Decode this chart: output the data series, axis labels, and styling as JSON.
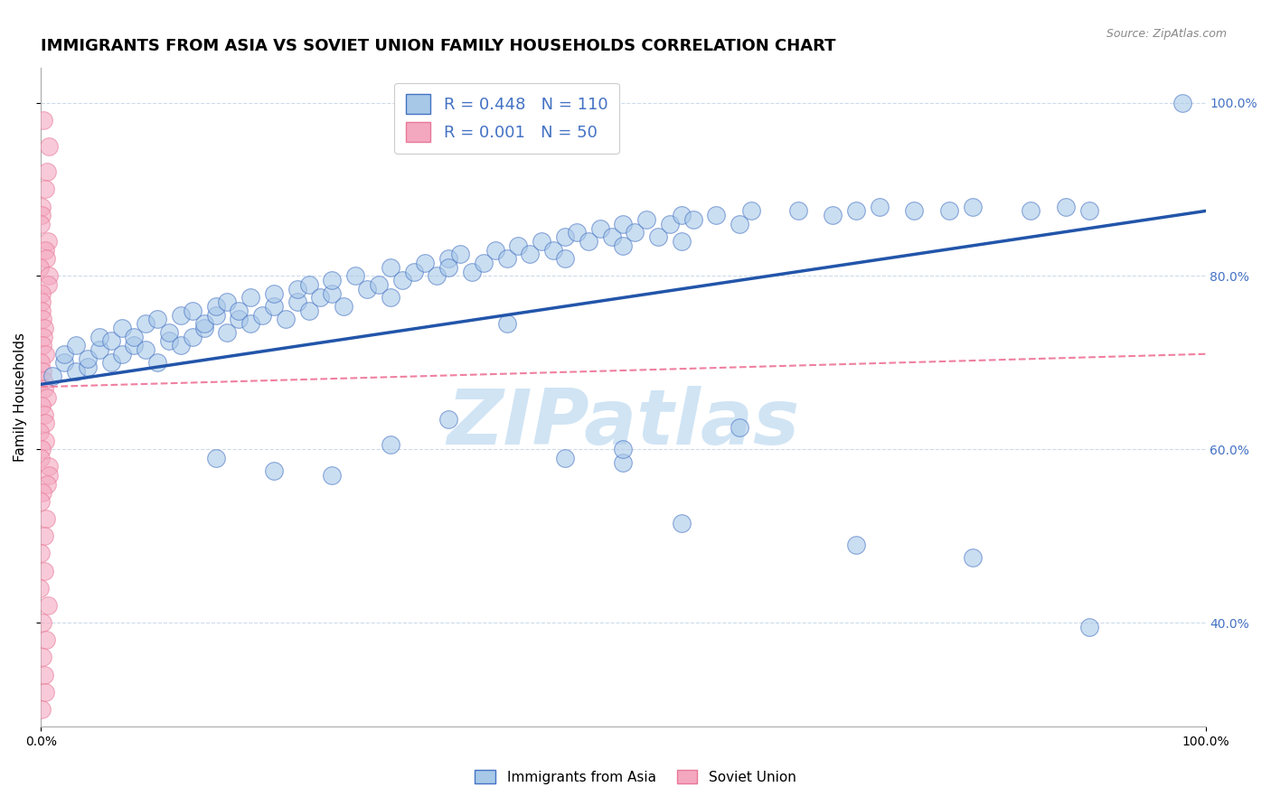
{
  "title": "IMMIGRANTS FROM ASIA VS SOVIET UNION FAMILY HOUSEHOLDS CORRELATION CHART",
  "source": "Source: ZipAtlas.com",
  "ylabel": "Family Households",
  "legend1_label": "Immigrants from Asia",
  "legend2_label": "Soviet Union",
  "blue_R": 0.448,
  "blue_N": 110,
  "pink_R": 0.001,
  "pink_N": 50,
  "blue_color": "#a8c8e8",
  "pink_color": "#f4a8c0",
  "blue_edge_color": "#4472c4",
  "pink_edge_color": "#e87898",
  "blue_line_color": "#2255aa",
  "pink_line_color": "#f080a0",
  "background_color": "#ffffff",
  "grid_color": "#c8d8e8",
  "watermark_color": "#d0e4f4",
  "title_fontsize": 13,
  "axis_label_fontsize": 11,
  "legend_fontsize": 13,
  "blue_scatter_x": [
    0.01,
    0.02,
    0.02,
    0.03,
    0.03,
    0.04,
    0.04,
    0.05,
    0.05,
    0.06,
    0.06,
    0.07,
    0.07,
    0.08,
    0.08,
    0.09,
    0.09,
    0.1,
    0.1,
    0.11,
    0.11,
    0.12,
    0.12,
    0.13,
    0.13,
    0.14,
    0.14,
    0.15,
    0.15,
    0.16,
    0.16,
    0.17,
    0.17,
    0.18,
    0.18,
    0.19,
    0.2,
    0.2,
    0.21,
    0.22,
    0.22,
    0.23,
    0.23,
    0.24,
    0.25,
    0.25,
    0.26,
    0.27,
    0.28,
    0.29,
    0.3,
    0.3,
    0.31,
    0.32,
    0.33,
    0.34,
    0.35,
    0.35,
    0.36,
    0.37,
    0.38,
    0.39,
    0.4,
    0.41,
    0.42,
    0.43,
    0.44,
    0.45,
    0.45,
    0.46,
    0.47,
    0.48,
    0.49,
    0.5,
    0.5,
    0.51,
    0.52,
    0.53,
    0.54,
    0.55,
    0.55,
    0.56,
    0.58,
    0.6,
    0.61,
    0.65,
    0.68,
    0.7,
    0.72,
    0.75,
    0.78,
    0.8,
    0.85,
    0.88,
    0.9,
    0.5,
    0.35,
    0.25,
    0.45,
    0.55,
    0.15,
    0.2,
    0.3,
    0.4,
    0.5,
    0.6,
    0.7,
    0.8,
    0.9,
    0.98
  ],
  "blue_scatter_y": [
    0.685,
    0.7,
    0.71,
    0.69,
    0.72,
    0.695,
    0.705,
    0.715,
    0.73,
    0.7,
    0.725,
    0.71,
    0.74,
    0.72,
    0.73,
    0.715,
    0.745,
    0.7,
    0.75,
    0.725,
    0.735,
    0.72,
    0.755,
    0.73,
    0.76,
    0.74,
    0.745,
    0.755,
    0.765,
    0.735,
    0.77,
    0.75,
    0.76,
    0.745,
    0.775,
    0.755,
    0.765,
    0.78,
    0.75,
    0.77,
    0.785,
    0.76,
    0.79,
    0.775,
    0.78,
    0.795,
    0.765,
    0.8,
    0.785,
    0.79,
    0.775,
    0.81,
    0.795,
    0.805,
    0.815,
    0.8,
    0.82,
    0.81,
    0.825,
    0.805,
    0.815,
    0.83,
    0.82,
    0.835,
    0.825,
    0.84,
    0.83,
    0.845,
    0.82,
    0.85,
    0.84,
    0.855,
    0.845,
    0.86,
    0.835,
    0.85,
    0.865,
    0.845,
    0.86,
    0.87,
    0.84,
    0.865,
    0.87,
    0.86,
    0.875,
    0.875,
    0.87,
    0.875,
    0.88,
    0.875,
    0.875,
    0.88,
    0.875,
    0.88,
    0.875,
    0.585,
    0.635,
    0.57,
    0.59,
    0.515,
    0.59,
    0.575,
    0.605,
    0.745,
    0.6,
    0.625,
    0.49,
    0.475,
    0.395,
    1.0
  ],
  "pink_scatter_x": [
    0.003,
    0.003,
    0.003,
    0.003,
    0.003,
    0.003,
    0.003,
    0.003,
    0.003,
    0.003,
    0.003,
    0.003,
    0.003,
    0.003,
    0.003,
    0.003,
    0.003,
    0.003,
    0.003,
    0.003,
    0.003,
    0.003,
    0.003,
    0.003,
    0.003,
    0.003,
    0.003,
    0.003,
    0.003,
    0.003,
    0.003,
    0.003,
    0.003,
    0.003,
    0.003,
    0.003,
    0.003,
    0.003,
    0.003,
    0.003,
    0.003,
    0.003,
    0.003,
    0.003,
    0.003,
    0.003,
    0.003,
    0.003,
    0.003,
    0.003
  ],
  "pink_scatter_y": [
    0.98,
    0.95,
    0.92,
    0.9,
    0.88,
    0.87,
    0.86,
    0.84,
    0.83,
    0.82,
    0.81,
    0.8,
    0.79,
    0.78,
    0.77,
    0.76,
    0.75,
    0.74,
    0.73,
    0.72,
    0.71,
    0.7,
    0.69,
    0.68,
    0.67,
    0.66,
    0.65,
    0.64,
    0.63,
    0.62,
    0.61,
    0.6,
    0.59,
    0.58,
    0.57,
    0.56,
    0.55,
    0.54,
    0.52,
    0.5,
    0.48,
    0.46,
    0.44,
    0.42,
    0.4,
    0.38,
    0.36,
    0.34,
    0.32,
    0.3
  ],
  "blue_trend_x": [
    0.0,
    1.0
  ],
  "blue_trend_y": [
    0.675,
    0.875
  ],
  "pink_trend_x": [
    0.0,
    1.0
  ],
  "pink_trend_y": [
    0.672,
    0.71
  ],
  "ylim_min": 0.28,
  "ylim_max": 1.04,
  "xlim_min": 0.0,
  "xlim_max": 1.0
}
